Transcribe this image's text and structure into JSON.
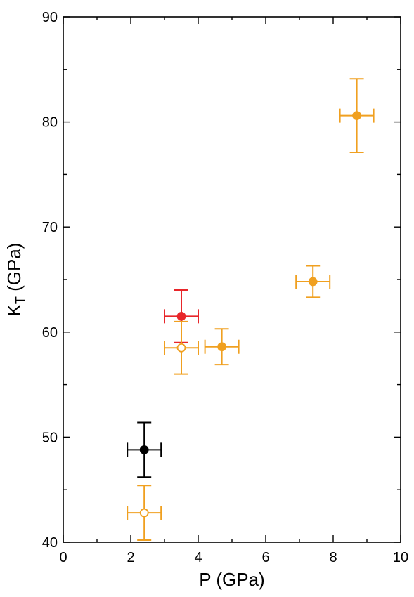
{
  "chart_data": {
    "type": "scatter",
    "xlabel": "P (GPa)",
    "ylabel_main": "K",
    "ylabel_sub": "T",
    "ylabel_suffix": " (GPa)",
    "xlim": [
      0,
      10
    ],
    "ylim": [
      40,
      90
    ],
    "x_ticks": [
      0,
      2,
      4,
      6,
      8,
      10
    ],
    "y_ticks": [
      40,
      50,
      60,
      70,
      80,
      90
    ],
    "x_minor_step": 1,
    "y_minor_step": 5,
    "grid": false,
    "colors": {
      "black": "#000000",
      "red": "#e8262a",
      "orange": "#f0a020"
    },
    "points": [
      {
        "x": 2.4,
        "y": 48.8,
        "xerr": 0.5,
        "yerr": 2.6,
        "color": "#000000",
        "filled": true
      },
      {
        "x": 2.4,
        "y": 42.8,
        "xerr": 0.5,
        "yerr": 2.6,
        "color": "#f0a020",
        "filled": false
      },
      {
        "x": 3.5,
        "y": 61.5,
        "xerr": 0.5,
        "yerr": 2.5,
        "color": "#e8262a",
        "filled": true
      },
      {
        "x": 3.5,
        "y": 58.5,
        "xerr": 0.5,
        "yerr": 2.5,
        "color": "#f0a020",
        "filled": false
      },
      {
        "x": 4.7,
        "y": 58.6,
        "xerr": 0.5,
        "yerr": 1.7,
        "color": "#f0a020",
        "filled": true
      },
      {
        "x": 7.4,
        "y": 64.8,
        "xerr": 0.5,
        "yerr": 1.5,
        "color": "#f0a020",
        "filled": true
      },
      {
        "x": 8.7,
        "y": 80.6,
        "xerr": 0.5,
        "yerr": 3.5,
        "color": "#f0a020",
        "filled": true
      }
    ]
  }
}
